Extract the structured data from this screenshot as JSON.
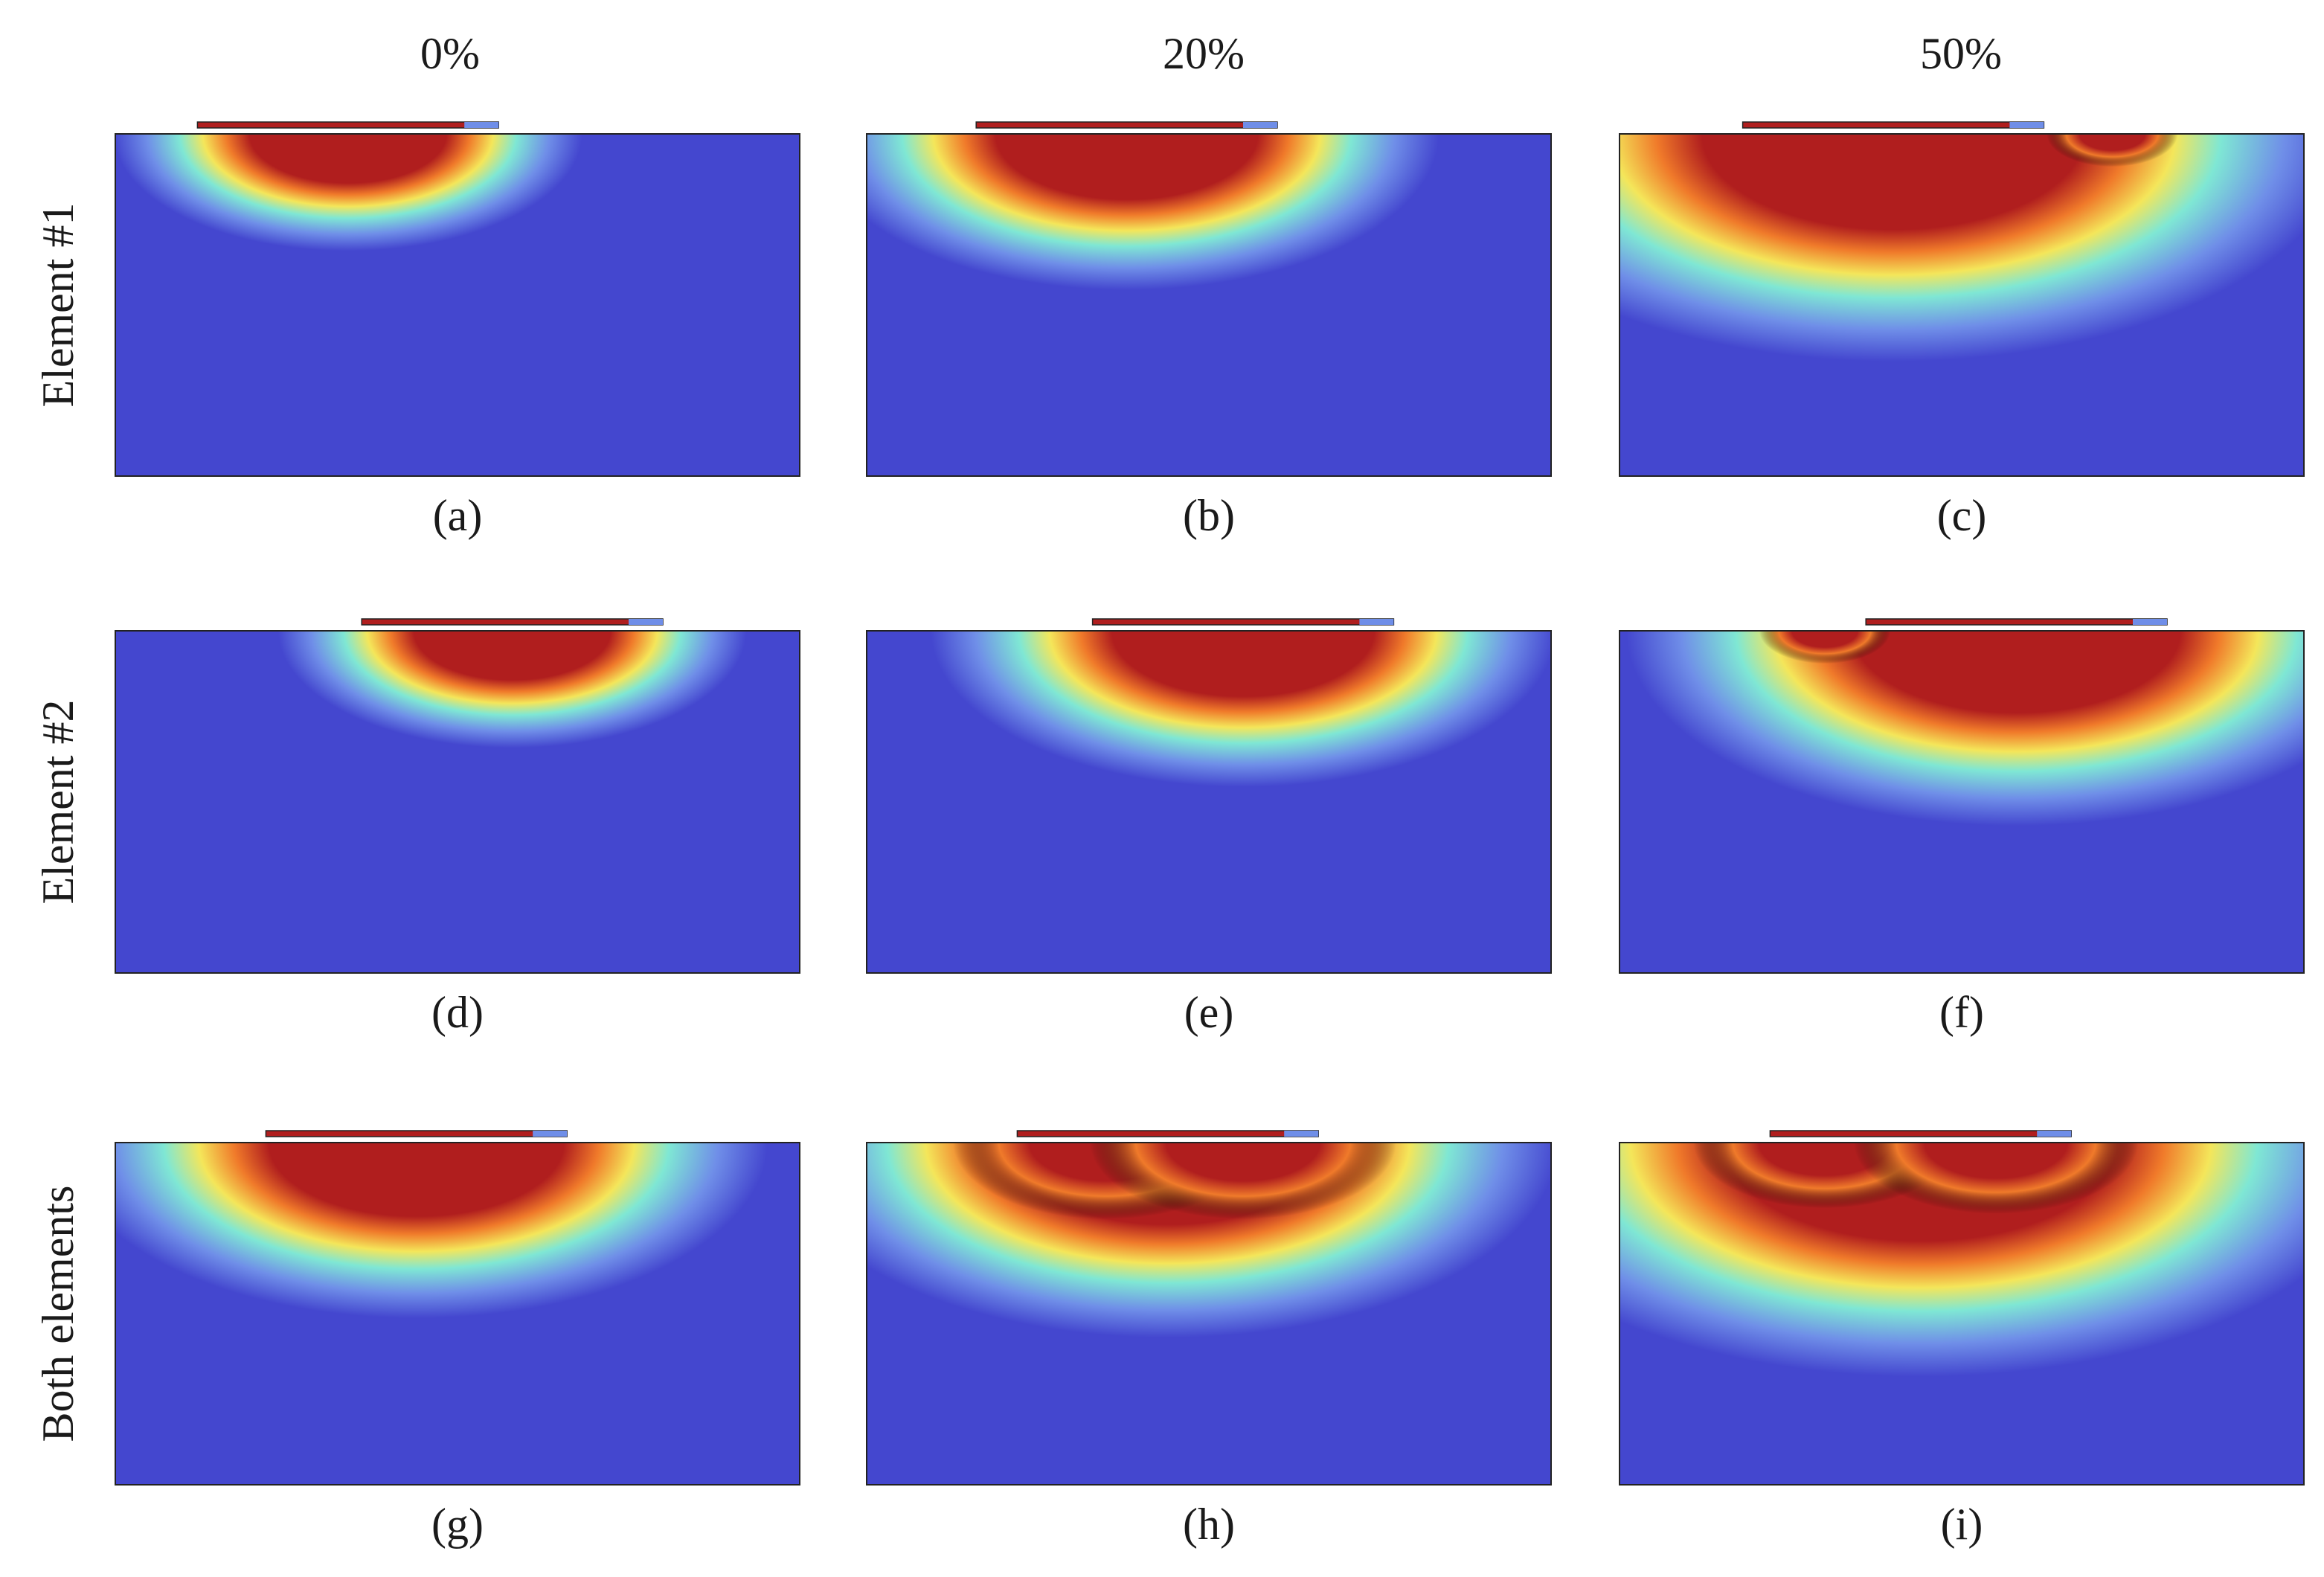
{
  "figure": {
    "columns": [
      "0%",
      "20%",
      "50%"
    ],
    "rows": [
      "Element #1",
      "Element #2",
      "Both elements"
    ],
    "panels": [
      {
        "caption": "(a)",
        "row": 0,
        "col": 0
      },
      {
        "caption": "(b)",
        "row": 0,
        "col": 1
      },
      {
        "caption": "(c)",
        "row": 0,
        "col": 2
      },
      {
        "caption": "(d)",
        "row": 1,
        "col": 0
      },
      {
        "caption": "(e)",
        "row": 1,
        "col": 1
      },
      {
        "caption": "(f)",
        "row": 1,
        "col": 2
      },
      {
        "caption": "(g)",
        "row": 2,
        "col": 0
      },
      {
        "caption": "(h)",
        "row": 2,
        "col": 1
      },
      {
        "caption": "(i)",
        "row": 2,
        "col": 2
      }
    ]
  },
  "colors": {
    "background": "#4447cf",
    "hot_core": "#b01e1e",
    "orange": "#f07a2a",
    "yellow": "#f4e65a",
    "cyan": "#7fe7d4",
    "light_blue": "#6f8ee8"
  }
}
